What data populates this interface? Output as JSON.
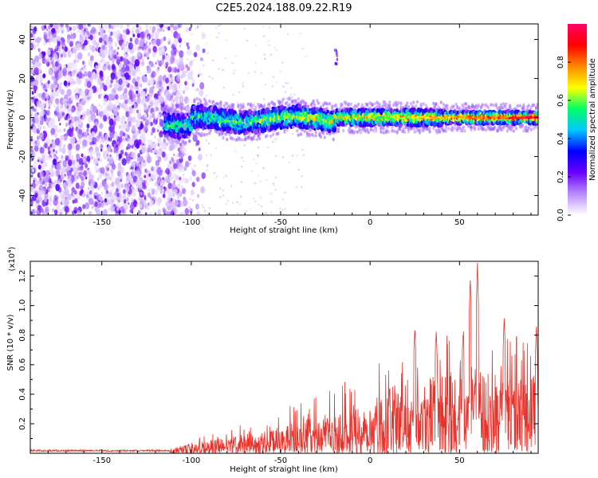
{
  "title": "C2E5.2024.188.09.22.R19",
  "chart_data": [
    {
      "type": "heatmap",
      "xlabel": "Height of straight line (km)",
      "ylabel": "Frequency (Hz)",
      "xlim": [
        -190,
        94
      ],
      "ylim": [
        -50,
        48
      ],
      "xticks": [
        -150,
        -100,
        -50,
        0,
        50
      ],
      "yticks": [
        -40,
        -20,
        0,
        20,
        40
      ],
      "noise_region_x": [
        -190,
        -105
      ],
      "signal_band_center_hz": 0,
      "signal_band_start_x": -115,
      "colorbar": {
        "label": "Normalized spectral amplitude",
        "range": [
          0,
          1
        ],
        "ticks": [
          "0.0",
          "0.2",
          "0.4",
          "0.6",
          "0.8"
        ],
        "colors": [
          "#ffffff",
          "#b98cff",
          "#6a00ff",
          "#0000ff",
          "#00c8ff",
          "#00ff66",
          "#ffff00",
          "#ff8800",
          "#ff0000",
          "#ff0066"
        ]
      }
    },
    {
      "type": "line",
      "xlabel": "Height of straight line (km)",
      "ylabel": "SNR (10 * v/v)",
      "yexponent": "(x10",
      "yexponent_power": "4",
      "yexponent_close": ")",
      "xlim": [
        -190,
        94
      ],
      "ylim": [
        0,
        1.3
      ],
      "xticks": [
        -150,
        -100,
        -50,
        0,
        50
      ],
      "yticks": [
        "0.2",
        "0.4",
        "0.6",
        "0.8",
        "1.0",
        "1.2"
      ],
      "color": "#e8332c",
      "envelope": [
        {
          "x": -190,
          "y": 0.015
        },
        {
          "x": -130,
          "y": 0.02
        },
        {
          "x": -112,
          "y": 0.03
        },
        {
          "x": -100,
          "y": 0.07
        },
        {
          "x": -80,
          "y": 0.11
        },
        {
          "x": -60,
          "y": 0.15
        },
        {
          "x": -40,
          "y": 0.22
        },
        {
          "x": -20,
          "y": 0.28
        },
        {
          "x": 0,
          "y": 0.38
        },
        {
          "x": 20,
          "y": 0.5
        },
        {
          "x": 40,
          "y": 0.55
        },
        {
          "x": 60,
          "y": 0.58
        },
        {
          "x": 80,
          "y": 0.5
        },
        {
          "x": 94,
          "y": 0.55
        }
      ],
      "peaks": [
        {
          "x": 25,
          "y": 0.86
        },
        {
          "x": 37,
          "y": 0.83
        },
        {
          "x": 52,
          "y": 0.82
        },
        {
          "x": 56,
          "y": 1.2
        },
        {
          "x": 60,
          "y": 1.3
        },
        {
          "x": 75,
          "y": 0.93
        },
        {
          "x": 93,
          "y": 0.87
        }
      ]
    }
  ]
}
